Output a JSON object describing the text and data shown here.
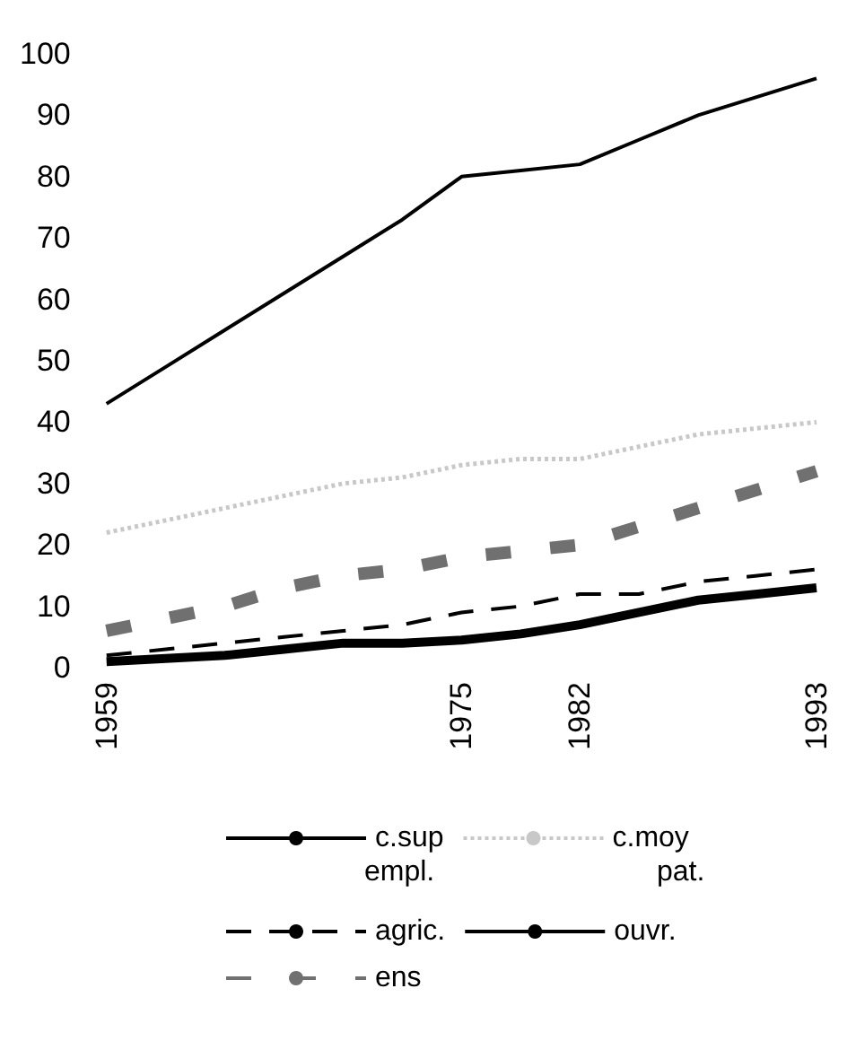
{
  "chart_data": {
    "type": "line",
    "categories": [
      "1959",
      null,
      null,
      null,
      null,
      null,
      "1975",
      null,
      "1982",
      null,
      null,
      null,
      "1993"
    ],
    "ylim": [
      0,
      100
    ],
    "yticks": [
      0,
      10,
      20,
      30,
      40,
      50,
      60,
      70,
      80,
      90,
      100
    ],
    "grid": false,
    "legend": "bottom",
    "marker": "none",
    "annotations": [
      "empl.",
      "pat."
    ],
    "series": [
      {
        "name": "c.sup",
        "color": "#000000",
        "line_style": "solid",
        "values": [
          43,
          49,
          55,
          61,
          67,
          73,
          80,
          81,
          82,
          86,
          90,
          93,
          96
        ]
      },
      {
        "name": "c.moy",
        "color": "#c8c8c8",
        "line_style": "dotted",
        "values": [
          22,
          24,
          26,
          28,
          30,
          31,
          33,
          34,
          34,
          36,
          38,
          39,
          40
        ]
      },
      {
        "name": "agric.",
        "color": "#000000",
        "line_style": "dashed",
        "values": [
          2,
          3,
          4,
          5,
          6,
          7,
          9,
          10,
          12,
          12,
          14,
          15,
          16
        ]
      },
      {
        "name": "ouvr.",
        "color": "#000000",
        "line_style": "solid",
        "values": [
          1,
          1.5,
          2,
          3,
          4,
          4,
          4.5,
          5.5,
          7,
          9,
          11,
          12,
          13
        ]
      },
      {
        "name": "ens",
        "color": "#707070",
        "line_style": "dashed",
        "values": [
          6,
          8,
          10,
          13,
          15,
          16,
          18,
          19,
          20,
          23,
          26,
          29,
          32
        ]
      }
    ]
  }
}
